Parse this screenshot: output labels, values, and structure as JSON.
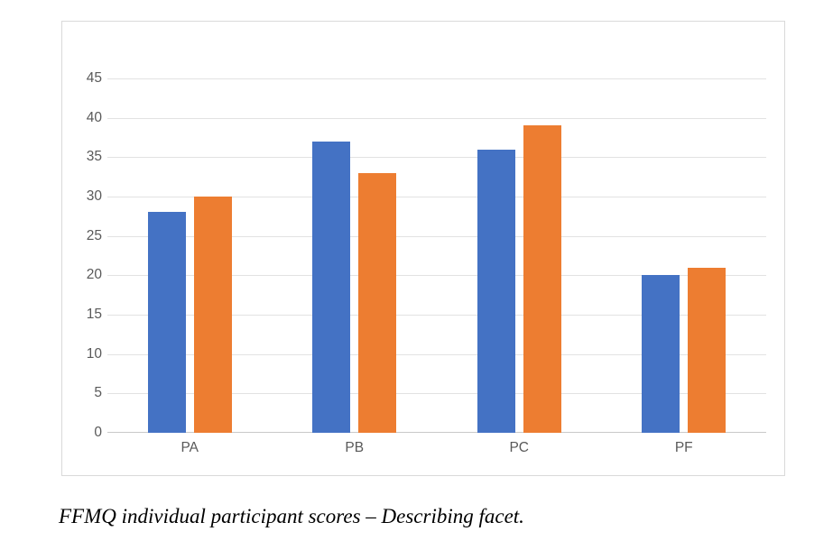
{
  "caption": "FFMQ individual participant scores – Describing facet.",
  "chart_data": {
    "type": "bar",
    "categories": [
      "PA",
      "PB",
      "PC",
      "PF"
    ],
    "series": [
      {
        "color": "#4472C4",
        "values": [
          28,
          37,
          36,
          20
        ]
      },
      {
        "color": "#ED7D31",
        "values": [
          30,
          33,
          39,
          21
        ]
      }
    ],
    "title": "",
    "xlabel": "",
    "ylabel": "",
    "ylim": [
      0,
      45
    ],
    "yticks": [
      0,
      5,
      10,
      15,
      20,
      25,
      30,
      35,
      40,
      45
    ],
    "grid": true,
    "legend_position": "none",
    "axis_label_color": "#595959",
    "gridline_color": "#e2e2e2",
    "baseline_color": "#c9c9c9",
    "frame_border_color": "#d9d9d9"
  }
}
